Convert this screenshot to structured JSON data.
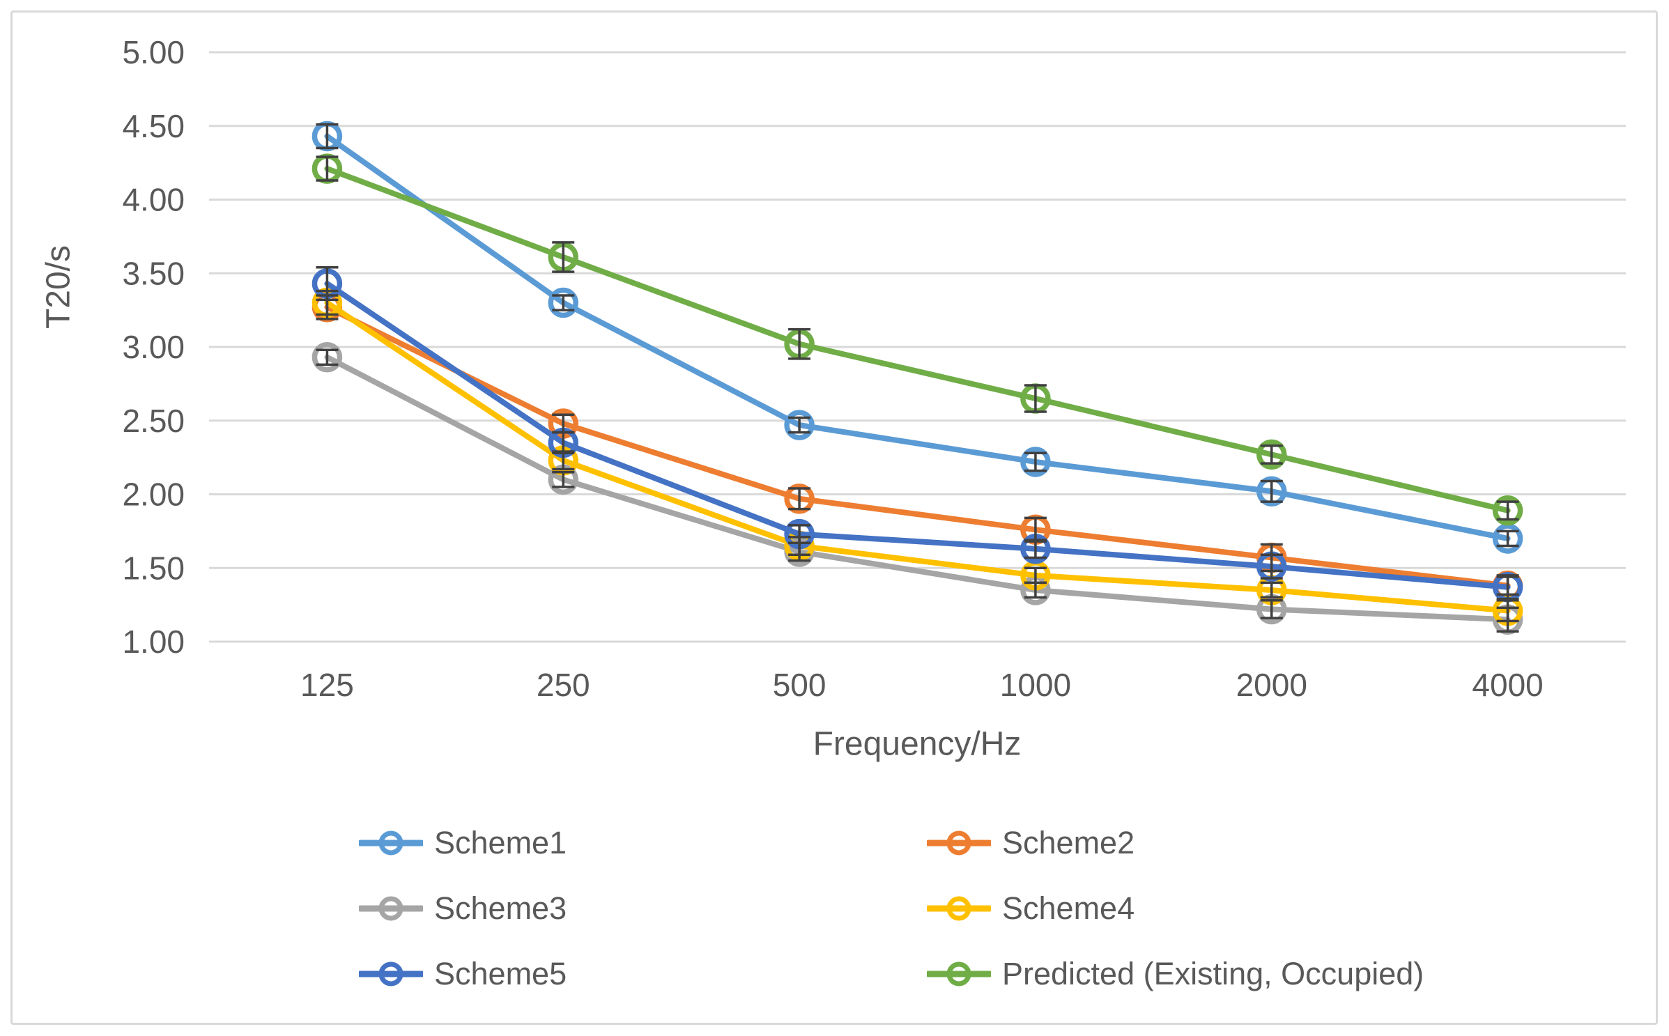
{
  "chart_data": {
    "type": "line",
    "title": "",
    "xlabel": "Frequency/Hz",
    "ylabel": "T20/s",
    "categories": [
      "125",
      "250",
      "500",
      "1000",
      "2000",
      "4000"
    ],
    "ylim": [
      1.0,
      5.0
    ],
    "y_tick_step": 0.5,
    "y_ticks": [
      "5.00",
      "4.50",
      "4.00",
      "3.50",
      "3.00",
      "2.50",
      "2.00",
      "1.50",
      "1.00"
    ],
    "grid": "horizontal-only",
    "gridline_color": "#d9d9d9",
    "text_color": "#595959",
    "error_bar_color": "#404040",
    "marker_style": "open-circle",
    "legend_position": "bottom, 2 columns x 3 rows",
    "series": [
      {
        "name": "Scheme1",
        "color": "#5B9BD5",
        "values": [
          4.43,
          3.3,
          2.47,
          2.22,
          2.02,
          1.7
        ],
        "errors": [
          0.08,
          0.05,
          0.05,
          0.06,
          0.07,
          0.05
        ]
      },
      {
        "name": "Scheme2",
        "color": "#ED7D31",
        "values": [
          3.27,
          2.48,
          1.97,
          1.76,
          1.57,
          1.38
        ],
        "errors": [
          0.08,
          0.06,
          0.07,
          0.08,
          0.09,
          0.06
        ]
      },
      {
        "name": "Scheme3",
        "color": "#A5A5A5",
        "values": [
          2.93,
          2.1,
          1.61,
          1.35,
          1.22,
          1.15
        ],
        "errors": [
          0.05,
          0.05,
          0.06,
          0.05,
          0.06,
          0.08
        ]
      },
      {
        "name": "Scheme4",
        "color": "#FFC000",
        "values": [
          3.3,
          2.23,
          1.65,
          1.45,
          1.35,
          1.21
        ],
        "errors": [
          0.08,
          0.06,
          0.06,
          0.05,
          0.05,
          0.07
        ]
      },
      {
        "name": "Scheme5",
        "color": "#4472C4",
        "values": [
          3.43,
          2.35,
          1.73,
          1.63,
          1.51,
          1.37
        ],
        "errors": [
          0.11,
          0.07,
          0.06,
          0.06,
          0.08,
          0.08
        ]
      },
      {
        "name": "Predicted (Existing, Occupied)",
        "color": "#70AD47",
        "values": [
          4.21,
          3.61,
          3.02,
          2.65,
          2.27,
          1.89
        ],
        "errors": [
          0.08,
          0.1,
          0.1,
          0.09,
          0.06,
          0.06
        ]
      }
    ]
  }
}
